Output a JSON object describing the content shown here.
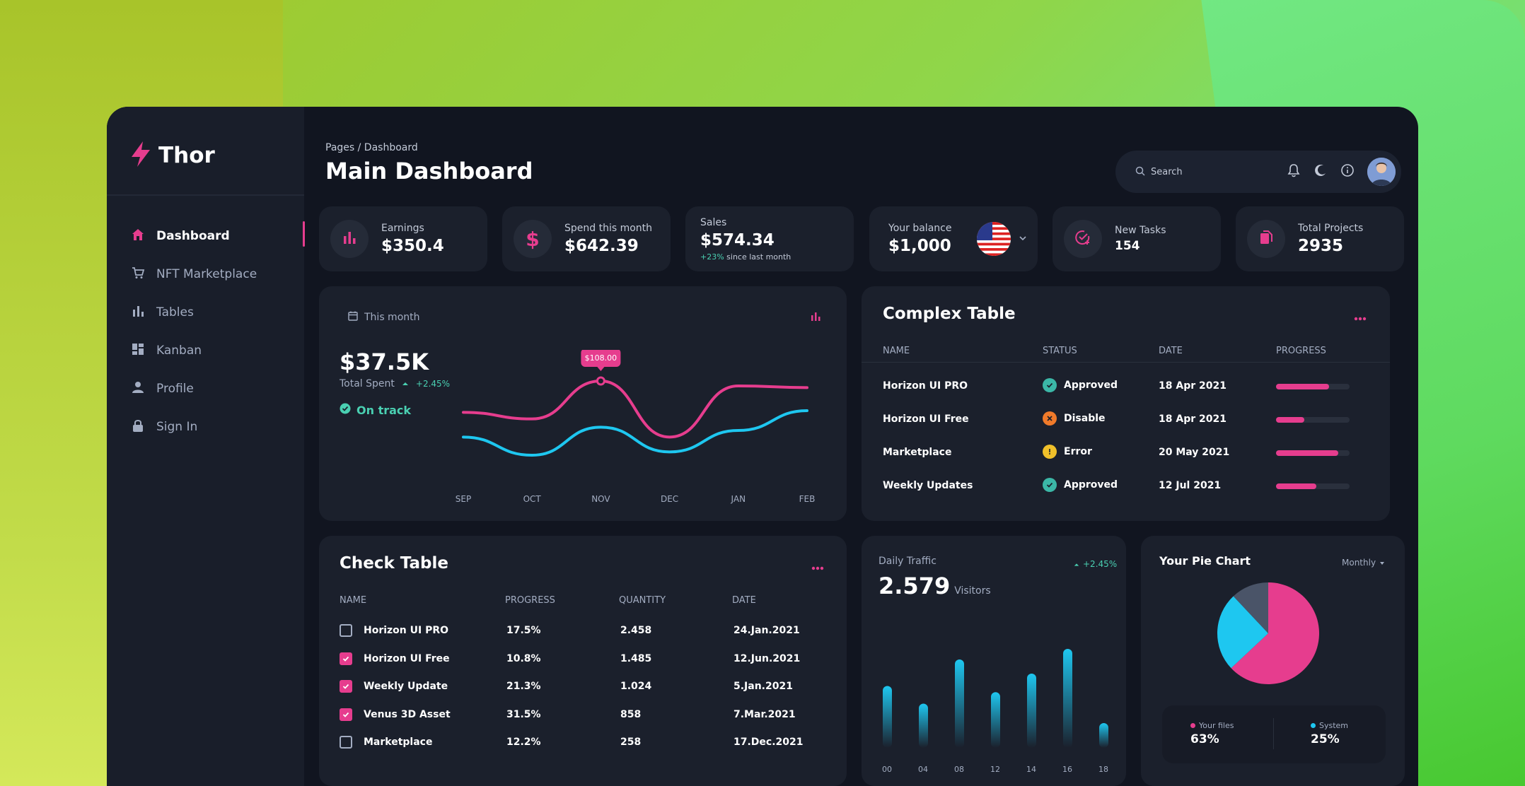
{
  "brand": {
    "name": "Thor",
    "accent": "#e63d8e"
  },
  "sidebar": {
    "items": [
      {
        "label": "Dashboard",
        "icon": "home-icon",
        "active": true
      },
      {
        "label": "NFT Marketplace",
        "icon": "cart-icon",
        "active": false
      },
      {
        "label": "Tables",
        "icon": "bar-chart-icon",
        "active": false
      },
      {
        "label": "Kanban",
        "icon": "kanban-icon",
        "active": false
      },
      {
        "label": "Profile",
        "icon": "person-icon",
        "active": false
      },
      {
        "label": "Sign In",
        "icon": "lock-icon",
        "active": false
      }
    ]
  },
  "header": {
    "breadcrumb": "Pages / Dashboard",
    "title": "Main Dashboard",
    "search_placeholder": "Search"
  },
  "stats": {
    "earnings": {
      "label": "Earnings",
      "value": "$350.4"
    },
    "spend": {
      "label": "Spend this month",
      "value": "$642.39"
    },
    "sales": {
      "label": "Sales",
      "value": "$574.34",
      "change": "+23%",
      "change_suffix": "since last month"
    },
    "balance": {
      "label": "Your balance",
      "value": "$1,000"
    },
    "tasks": {
      "label": "New Tasks",
      "value": "154"
    },
    "projects": {
      "label": "Total Projects",
      "value": "2935"
    }
  },
  "spent_card": {
    "period": "This month",
    "amount": "$37.5K",
    "label": "Total Spent",
    "change": "+2.45%",
    "status": "On track",
    "tooltip": "$108.00"
  },
  "chart_data": [
    {
      "type": "line",
      "x": [
        "SEP",
        "OCT",
        "NOV",
        "DEC",
        "JAN",
        "FEB"
      ],
      "series": [
        {
          "color": "#e63d8e",
          "values": [
            70,
            62,
            108,
            40,
            102,
            100
          ]
        },
        {
          "color": "#1ec7f0",
          "values": [
            40,
            18,
            52,
            22,
            48,
            72
          ]
        }
      ],
      "annotations": [
        "$108.00"
      ]
    },
    {
      "type": "bar",
      "title": "Daily Traffic",
      "categories": [
        "00",
        "04",
        "08",
        "12",
        "14",
        "16",
        "18"
      ],
      "values": [
        70,
        50,
        100,
        63,
        84,
        112,
        28
      ]
    },
    {
      "type": "pie",
      "title": "Your Pie Chart",
      "slices": [
        {
          "label": "Your files",
          "value": 63,
          "color": "#e63d8e"
        },
        {
          "label": "System",
          "value": 25,
          "color": "#1ec7f0"
        },
        {
          "label": "",
          "value": 12,
          "color": "#4a5468"
        }
      ]
    }
  ],
  "complex_table": {
    "title": "Complex Table",
    "headers": [
      "NAME",
      "STATUS",
      "DATE",
      "PROGRESS"
    ],
    "rows": [
      {
        "name": "Horizon UI PRO",
        "status": "Approved",
        "status_color": "#3bb7a7",
        "date": "18 Apr 2021",
        "progress": 0.72
      },
      {
        "name": "Horizon UI Free",
        "status": "Disable",
        "status_color": "#f07a2a",
        "date": "18 Apr 2021",
        "progress": 0.38
      },
      {
        "name": "Marketplace",
        "status": "Error",
        "status_color": "#f0c02a",
        "date": "20 May 2021",
        "progress": 0.85
      },
      {
        "name": "Weekly Updates",
        "status": "Approved",
        "status_color": "#3bb7a7",
        "date": "12 Jul 2021",
        "progress": 0.55
      }
    ]
  },
  "check_table": {
    "title": "Check Table",
    "headers": [
      "NAME",
      "PROGRESS",
      "QUANTITY",
      "DATE"
    ],
    "rows": [
      {
        "checked": false,
        "name": "Horizon UI PRO",
        "progress": "17.5%",
        "quantity": "2.458",
        "date": "24.Jan.2021"
      },
      {
        "checked": true,
        "name": "Horizon UI Free",
        "progress": "10.8%",
        "quantity": "1.485",
        "date": "12.Jun.2021"
      },
      {
        "checked": true,
        "name": "Weekly Update",
        "progress": "21.3%",
        "quantity": "1.024",
        "date": "5.Jan.2021"
      },
      {
        "checked": true,
        "name": "Venus 3D Asset",
        "progress": "31.5%",
        "quantity": "858",
        "date": "7.Mar.2021"
      },
      {
        "checked": false,
        "name": "Marketplace",
        "progress": "12.2%",
        "quantity": "258",
        "date": "17.Dec.2021"
      }
    ]
  },
  "traffic": {
    "label": "Daily Traffic",
    "value": "2.579",
    "unit": "Visitors",
    "change": "+2.45%"
  },
  "pie": {
    "title": "Your Pie Chart",
    "dropdown": "Monthly",
    "files_label": "Your files",
    "files_value": "63%",
    "system_label": "System",
    "system_value": "25%"
  }
}
